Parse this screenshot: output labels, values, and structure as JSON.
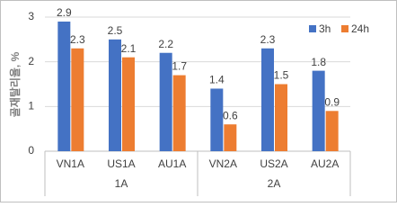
{
  "chart_data": {
    "type": "bar",
    "y_label": "골재탈리율, %",
    "groups": [
      {
        "label": "1A",
        "categories": [
          "VN1A",
          "US1A",
          "AU1A"
        ]
      },
      {
        "label": "2A",
        "categories": [
          "VN2A",
          "US2A",
          "AU2A"
        ]
      }
    ],
    "series": [
      {
        "name": "3h",
        "color": "#4472c4",
        "values": [
          2.9,
          2.5,
          2.2,
          1.4,
          2.3,
          1.8
        ]
      },
      {
        "name": "24h",
        "color": "#ed7d31",
        "values": [
          2.3,
          2.1,
          1.7,
          0.6,
          1.5,
          0.9
        ]
      }
    ],
    "ylim": [
      0,
      3
    ],
    "yticks": [
      0,
      1,
      2,
      3
    ],
    "grid": true,
    "legend": "top-right"
  }
}
